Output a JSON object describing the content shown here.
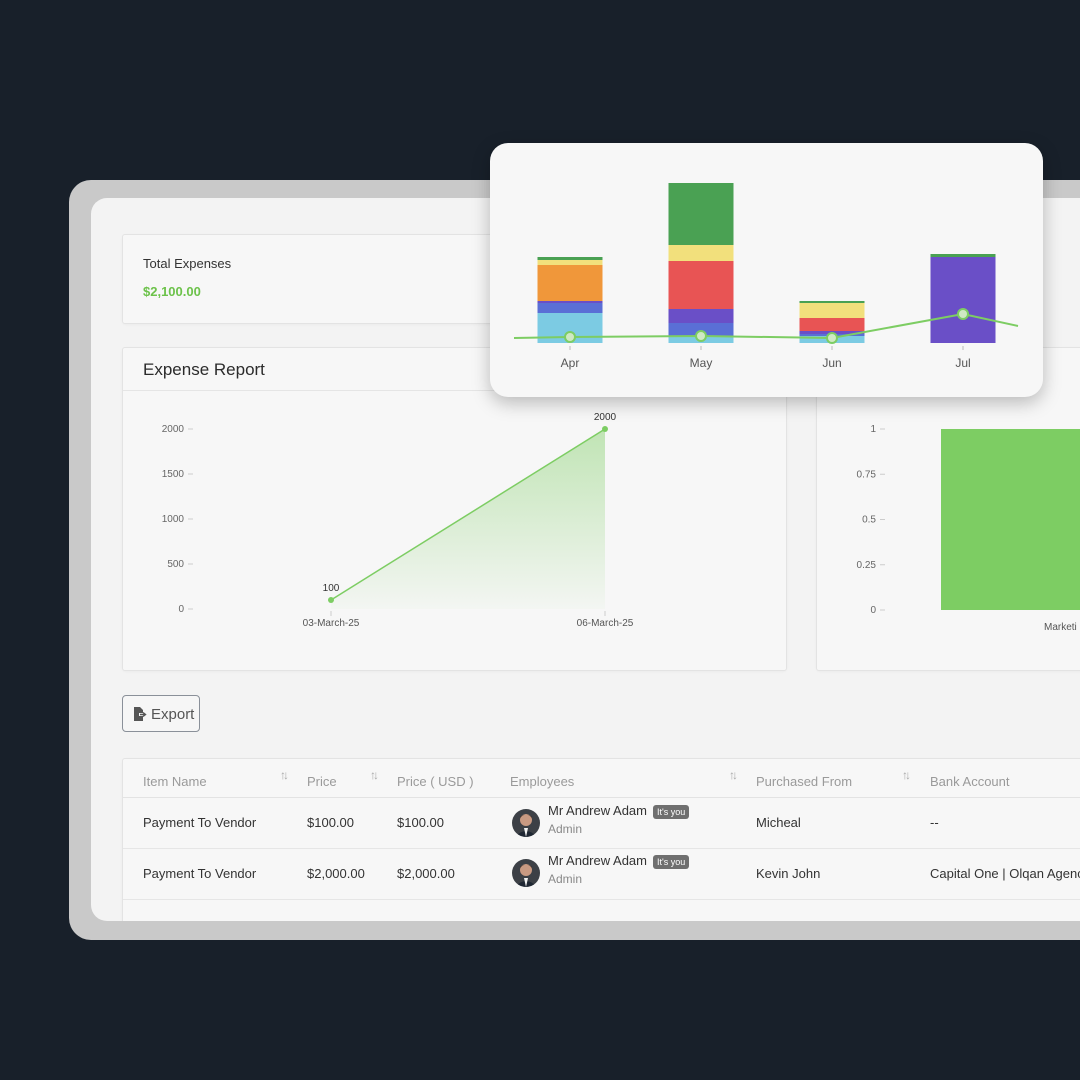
{
  "colors": {
    "accent_green": "#6cc24a",
    "bar_green": "#7dcd63",
    "background": "#18202a"
  },
  "total_card": {
    "label": "Total Expenses",
    "value": "$2,100.00"
  },
  "expense_report": {
    "title": "Expense Report"
  },
  "export_button": {
    "label": "Export",
    "icon": "file-export-icon"
  },
  "table": {
    "headers": [
      "Item Name",
      "Price",
      "Price ( USD )",
      "Employees",
      "Purchased From",
      "Bank Account"
    ],
    "rows": [
      {
        "item_name": "Payment To Vendor",
        "price": "$100.00",
        "price_usd": "$100.00",
        "employee_name": "Mr Andrew Adam",
        "employee_badge": "It's you",
        "employee_role": "Admin",
        "purchased_from": "Micheal",
        "bank_account": "--"
      },
      {
        "item_name": "Payment To Vendor",
        "price": "$2,000.00",
        "price_usd": "$2,000.00",
        "employee_name": "Mr Andrew Adam",
        "employee_badge": "It's you",
        "employee_role": "Admin",
        "purchased_from": "Kevin John",
        "bank_account": "Capital One | Olqan Agenc"
      }
    ]
  },
  "chart_data": [
    {
      "type": "area",
      "title": "Expense Report",
      "x": [
        "03-March-25",
        "06-March-25"
      ],
      "y": [
        100,
        2000
      ],
      "data_labels": [
        "100",
        "2000"
      ],
      "yticks": [
        "0",
        "500",
        "1000",
        "1500",
        "2000"
      ],
      "ylim": [
        0,
        2000
      ],
      "color": "#7dcd63"
    },
    {
      "type": "bar",
      "categories": [
        "Marketi"
      ],
      "values": [
        1
      ],
      "yticks": [
        "0",
        "0.25",
        "0.5",
        "0.75",
        "1"
      ],
      "ylim": [
        0,
        1
      ],
      "color": "#7dcd63"
    },
    {
      "type": "bar",
      "stacked": true,
      "categories": [
        "Apr",
        "May",
        "Jun",
        "Jul"
      ],
      "series": [
        {
          "color": "#7ccbe3",
          "values": [
            30,
            6,
            7,
            0
          ]
        },
        {
          "color": "#5a6fd6",
          "values": [
            10,
            14,
            2,
            0
          ]
        },
        {
          "color": "#6a4fc7",
          "values": [
            2,
            14,
            3,
            86
          ]
        },
        {
          "color": "#e85454",
          "values": [
            0,
            48,
            13,
            0
          ]
        },
        {
          "color": "#f0973a",
          "values": [
            36,
            0,
            0,
            0
          ]
        },
        {
          "color": "#f2e07c",
          "values": [
            5,
            16,
            15,
            0
          ]
        },
        {
          "color": "#4aa153",
          "values": [
            3,
            62,
            2,
            3
          ]
        }
      ],
      "line": {
        "color": "#7dcd63",
        "values": [
          6,
          7,
          5,
          29
        ]
      },
      "ylim": [
        0,
        160
      ]
    }
  ]
}
